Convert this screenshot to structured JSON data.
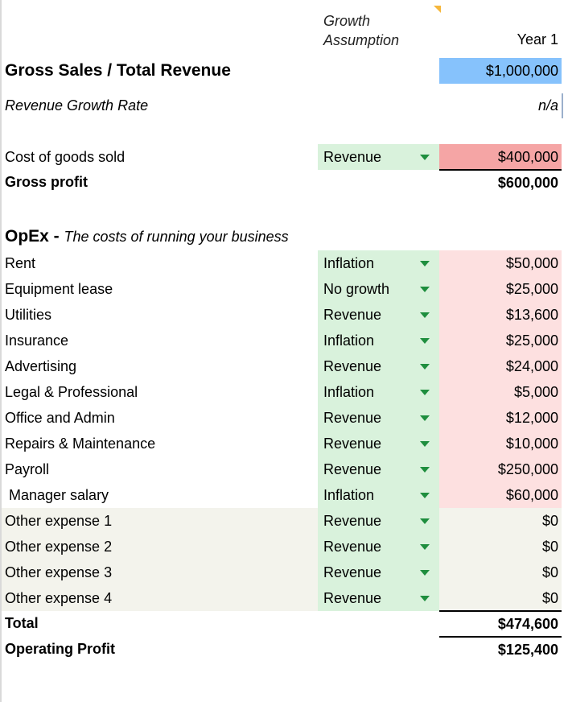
{
  "header": {
    "growth_line1": "Growth",
    "growth_line2": "Assumption",
    "year": "Year 1"
  },
  "revenue": {
    "label": "Gross Sales / Total Revenue",
    "value": "$1,000,000"
  },
  "growth_rate": {
    "label": "Revenue Growth Rate",
    "value": "n/a"
  },
  "cogs": {
    "label": "Cost of goods sold",
    "assumption": "Revenue",
    "value": "$400,000"
  },
  "gross_profit": {
    "label": "Gross profit",
    "value": "$600,000"
  },
  "opex": {
    "title": "OpEx - ",
    "subtitle": "The costs of running your business",
    "items": [
      {
        "label": "Rent",
        "assumption": "Inflation",
        "value": "$50,000"
      },
      {
        "label": "Equipment lease",
        "assumption": "No growth",
        "value": "$25,000"
      },
      {
        "label": "Utilities",
        "assumption": "Revenue",
        "value": "$13,600"
      },
      {
        "label": "Insurance",
        "assumption": "Inflation",
        "value": "$25,000"
      },
      {
        "label": "Advertising",
        "assumption": "Revenue",
        "value": "$24,000"
      },
      {
        "label": "Legal & Professional",
        "assumption": "Inflation",
        "value": "$5,000"
      },
      {
        "label": "Office and Admin",
        "assumption": "Revenue",
        "value": "$12,000"
      },
      {
        "label": "Repairs & Maintenance",
        "assumption": "Revenue",
        "value": "$10,000"
      },
      {
        "label": "Payroll",
        "assumption": "Revenue",
        "value": "$250,000"
      },
      {
        "label": "Manager salary",
        "assumption": "Inflation",
        "value": "$60,000"
      },
      {
        "label": "Other expense 1",
        "assumption": "Revenue",
        "value": "$0"
      },
      {
        "label": "Other expense 2",
        "assumption": "Revenue",
        "value": "$0"
      },
      {
        "label": "Other expense 3",
        "assumption": "Revenue",
        "value": "$0"
      },
      {
        "label": "Other expense 4",
        "assumption": "Revenue",
        "value": "$0"
      }
    ]
  },
  "total": {
    "label": "Total",
    "value": "$474,600"
  },
  "operating_profit": {
    "label": "Operating Profit",
    "value": "$125,400"
  },
  "colors": {
    "revenue_cell": "#86c2fc",
    "cogs_cell": "#f5a5a5",
    "expense_cell": "#fde0e0",
    "assumption_cell": "#d9f2dc",
    "other_row": "#f3f3ec",
    "dropdown_arrow": "#1e8e3e"
  }
}
